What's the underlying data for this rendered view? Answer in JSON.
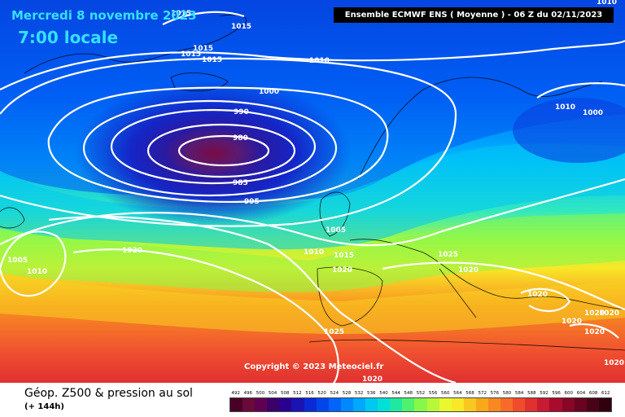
{
  "header": {
    "date": "Mercredi 8 novembre 2023",
    "time": "7:00 locale",
    "model_run": "Ensemble ECMWF ENS  ( Moyenne )  -  06 Z du 02/11/2023"
  },
  "copyright": "Copyright © 2023 Meteociel.fr",
  "footer": {
    "field_title": "Géop. Z500 & pression au sol",
    "lead_time": "(+ 144h)"
  },
  "legend": {
    "labels": [
      "492",
      "496",
      "500",
      "504",
      "508",
      "512",
      "516",
      "520",
      "524",
      "528",
      "532",
      "536",
      "540",
      "544",
      "548",
      "552",
      "556",
      "560",
      "564",
      "568",
      "572",
      "576",
      "580",
      "584",
      "588",
      "592",
      "596",
      "600",
      "604",
      "608",
      "612"
    ],
    "colors": [
      "#4a0026",
      "#6a0a3a",
      "#600050",
      "#3a0068",
      "#2a0090",
      "#1a14b4",
      "#0a2ad6",
      "#0046ea",
      "#0064f8",
      "#0088ff",
      "#00a8ff",
      "#00c8f0",
      "#00e0d8",
      "#20e8a0",
      "#50f070",
      "#88f848",
      "#b8f838",
      "#e8f830",
      "#f8e828",
      "#f8c820",
      "#f8a818",
      "#f88820",
      "#f86a28",
      "#f04c2c",
      "#e03030",
      "#c81a30",
      "#aa0a2c",
      "#880626",
      "#680420",
      "#4a0218",
      "#300010"
    ]
  },
  "isobar_labels": [
    {
      "text": "1015"
    },
    {
      "text": "1015"
    },
    {
      "text": "1015"
    },
    {
      "text": "1015"
    },
    {
      "text": "1015"
    },
    {
      "text": "1010"
    },
    {
      "text": "1010"
    },
    {
      "text": "1000"
    },
    {
      "text": "990"
    },
    {
      "text": "980"
    },
    {
      "text": "985"
    },
    {
      "text": "995"
    },
    {
      "text": "1000"
    },
    {
      "text": "1005"
    },
    {
      "text": "1010"
    },
    {
      "text": "1015"
    },
    {
      "text": "1020"
    },
    {
      "text": "1025"
    },
    {
      "text": "1020"
    },
    {
      "text": "1020"
    },
    {
      "text": "1020"
    },
    {
      "text": "1020"
    },
    {
      "text": "1020"
    },
    {
      "text": "1020"
    },
    {
      "text": "1025"
    },
    {
      "text": "1020"
    },
    {
      "text": "1005"
    },
    {
      "text": "1010"
    },
    {
      "text": "1020"
    },
    {
      "text": "1020"
    },
    {
      "text": "1010"
    }
  ],
  "colors": {
    "label_cyan": "#35e0ff",
    "isobar": "#ffffff",
    "coastline": "#000000"
  }
}
